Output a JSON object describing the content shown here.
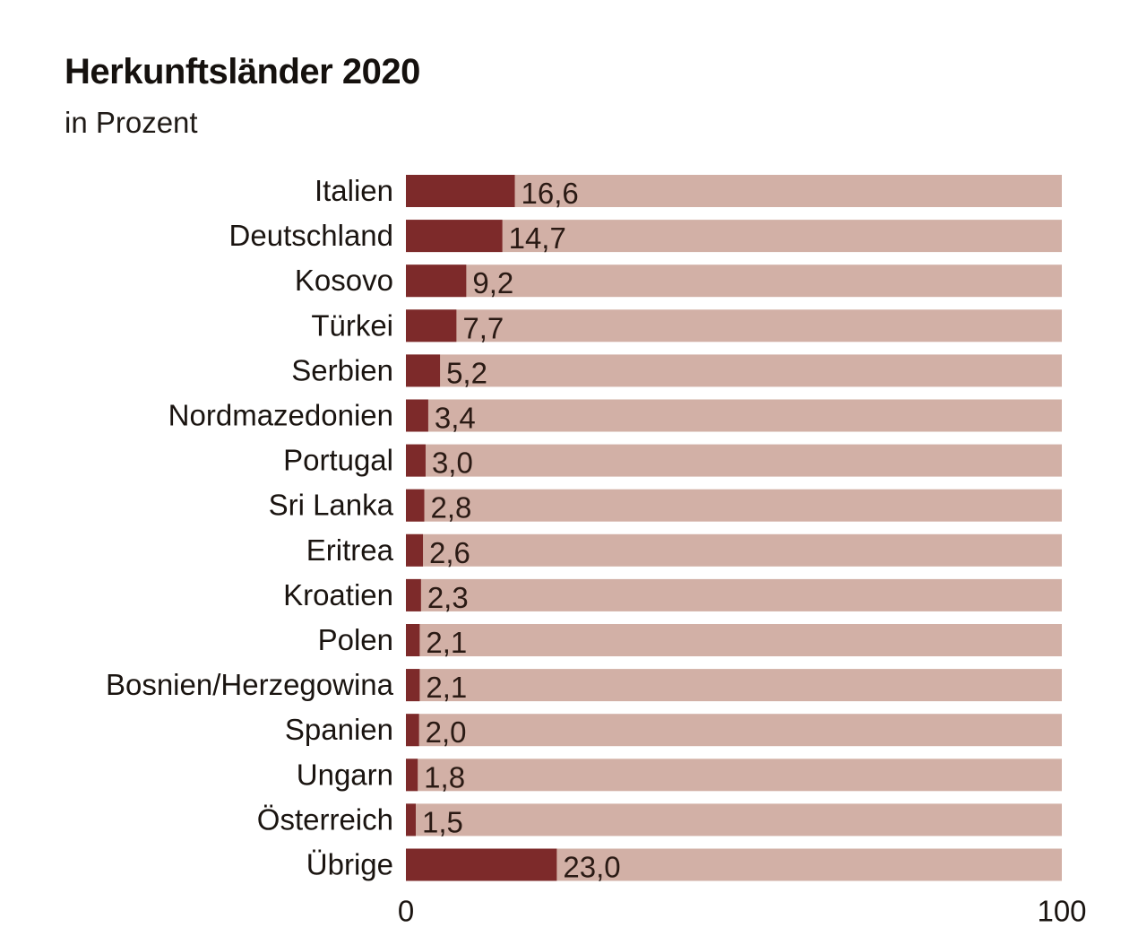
{
  "chart_data": {
    "type": "bar",
    "orientation": "horizontal",
    "title": "Herkunftsländer 2020",
    "subtitle": "in Prozent",
    "categories": [
      "Italien",
      "Deutschland",
      "Kosovo",
      "Türkei",
      "Serbien",
      "Nordmazedonien",
      "Portugal",
      "Sri Lanka",
      "Eritrea",
      "Kroatien",
      "Polen",
      "Bosnien/Herzegowina",
      "Spanien",
      "Ungarn",
      "Österreich",
      "Übrige"
    ],
    "values": [
      16.6,
      14.7,
      9.2,
      7.7,
      5.2,
      3.4,
      3.0,
      2.8,
      2.6,
      2.3,
      2.1,
      2.1,
      2.0,
      1.8,
      1.5,
      23.0
    ],
    "value_labels": [
      "16,6",
      "14,7",
      "9,2",
      "7,7",
      "5,2",
      "3,4",
      "3,0",
      "2,8",
      "2,6",
      "2,3",
      "2,1",
      "2,1",
      "2,0",
      "1,8",
      "1,5",
      "23,0"
    ],
    "xlim": [
      0,
      100
    ],
    "x_ticks": [
      0,
      100
    ],
    "x_tick_labels": [
      "0",
      "100"
    ],
    "xlabel": "",
    "ylabel": "",
    "grid": false,
    "legend": "none",
    "colors": {
      "bar": "#7d2a2a",
      "track": "#d2b0a6",
      "text": "#1a1410"
    }
  }
}
